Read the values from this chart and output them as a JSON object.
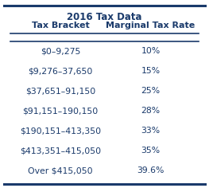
{
  "title": "2016 Tax Data",
  "col1_header": "Tax Bracket",
  "col2_header": "Marginal Tax Rate",
  "rows": [
    [
      "$0–9,275",
      "10%"
    ],
    [
      "$9,276–37,650",
      "15%"
    ],
    [
      "$37,651–91,150",
      "25%"
    ],
    [
      "$91,151–190,150",
      "28%"
    ],
    [
      "$190,151–413,350",
      "33%"
    ],
    [
      "$413,351–415,050",
      "35%"
    ],
    [
      "Over $415,050",
      "39.6%"
    ]
  ],
  "text_color": "#1a3a6b",
  "bg_color": "#ffffff",
  "border_color": "#1a3a6b",
  "title_fontsize": 8.5,
  "header_fontsize": 8.0,
  "data_fontsize": 7.8
}
